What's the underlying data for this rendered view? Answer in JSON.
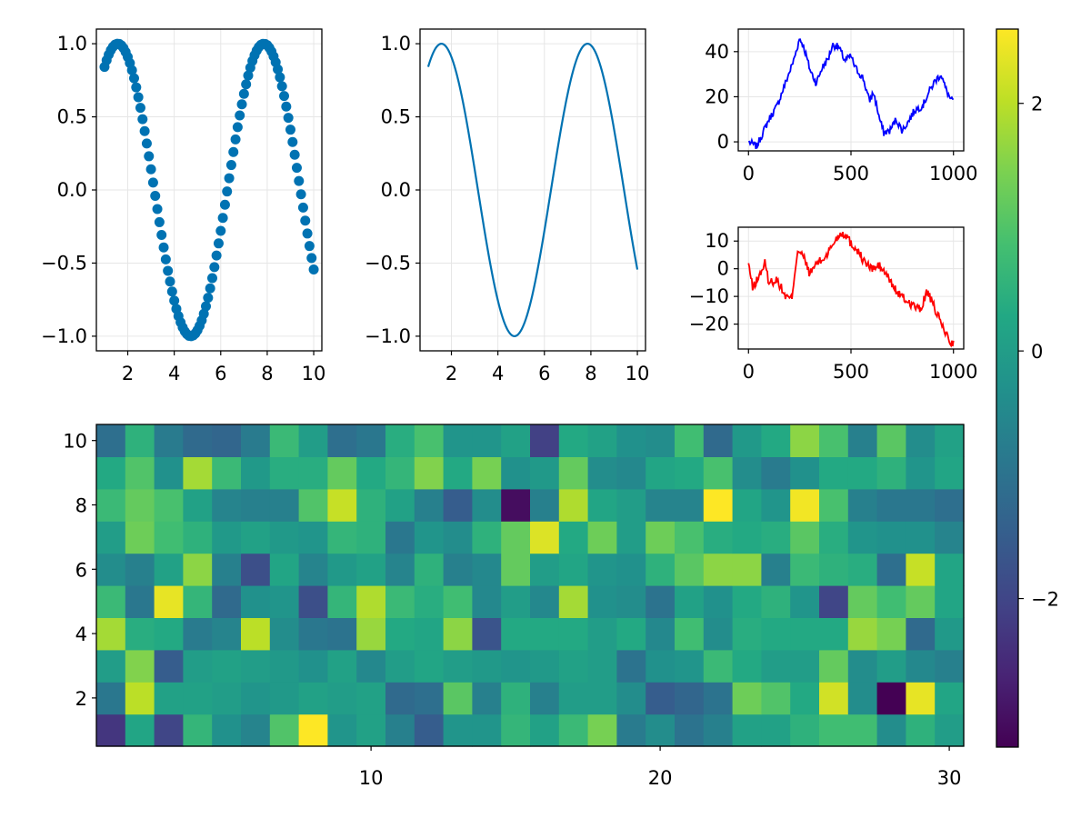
{
  "chart_data": [
    {
      "id": "scatter",
      "type": "scatter",
      "title": "",
      "function": "sin(x)",
      "x_range": [
        1,
        10
      ],
      "n_points": 100,
      "xticks": [
        "2",
        "4",
        "6",
        "8",
        "10"
      ],
      "yticks": [
        "1.0",
        "0.5",
        "0.0",
        "−0.5",
        "−1.0"
      ],
      "xlim": [
        0.65,
        10.35
      ],
      "ylim": [
        -1.1,
        1.1
      ],
      "grid": true,
      "color": "#0072b2"
    },
    {
      "id": "line",
      "type": "line",
      "title": "",
      "function": "sin(x)",
      "x_range": [
        1,
        10
      ],
      "n_points": 200,
      "xticks": [
        "2",
        "4",
        "6",
        "8",
        "10"
      ],
      "yticks": [
        "1.0",
        "0.5",
        "0.0",
        "−0.5",
        "−1.0"
      ],
      "xlim": [
        0.65,
        10.35
      ],
      "ylim": [
        -1.1,
        1.1
      ],
      "grid": true,
      "color": "#0072b2"
    },
    {
      "id": "walk-blue",
      "type": "line",
      "title": "",
      "description_values": "random walk, 1000 steps",
      "keypoints": [
        [
          0,
          0
        ],
        [
          40,
          -2
        ],
        [
          70,
          4
        ],
        [
          100,
          10
        ],
        [
          140,
          16
        ],
        [
          180,
          26
        ],
        [
          220,
          36
        ],
        [
          250,
          46
        ],
        [
          270,
          42
        ],
        [
          300,
          32
        ],
        [
          330,
          26
        ],
        [
          360,
          33
        ],
        [
          390,
          37
        ],
        [
          410,
          43
        ],
        [
          440,
          42
        ],
        [
          470,
          36
        ],
        [
          500,
          38
        ],
        [
          520,
          33
        ],
        [
          560,
          28
        ],
        [
          590,
          18
        ],
        [
          610,
          22
        ],
        [
          640,
          10
        ],
        [
          660,
          4
        ],
        [
          690,
          5
        ],
        [
          720,
          10
        ],
        [
          750,
          5
        ],
        [
          780,
          9
        ],
        [
          810,
          14
        ],
        [
          850,
          16
        ],
        [
          880,
          22
        ],
        [
          910,
          27
        ],
        [
          940,
          30
        ],
        [
          960,
          24
        ],
        [
          990,
          18
        ],
        [
          1000,
          19
        ]
      ],
      "xticks": [
        "0",
        "500",
        "1000"
      ],
      "yticks": [
        "40",
        "20",
        "0"
      ],
      "xlim": [
        -50,
        1050
      ],
      "ylim": [
        -4,
        50
      ],
      "grid": true,
      "color": "#0000ff"
    },
    {
      "id": "walk-red",
      "type": "line",
      "title": "",
      "description_values": "random walk, 1000 steps",
      "keypoints": [
        [
          0,
          2
        ],
        [
          20,
          -7
        ],
        [
          50,
          -3
        ],
        [
          80,
          2
        ],
        [
          100,
          -5
        ],
        [
          140,
          -4
        ],
        [
          180,
          -10
        ],
        [
          210,
          -11
        ],
        [
          240,
          7
        ],
        [
          270,
          4
        ],
        [
          300,
          -2
        ],
        [
          330,
          2
        ],
        [
          360,
          3
        ],
        [
          390,
          6
        ],
        [
          420,
          10
        ],
        [
          450,
          13
        ],
        [
          480,
          12
        ],
        [
          500,
          9
        ],
        [
          530,
          7
        ],
        [
          560,
          3
        ],
        [
          600,
          0
        ],
        [
          640,
          1
        ],
        [
          680,
          -3
        ],
        [
          720,
          -8
        ],
        [
          760,
          -11
        ],
        [
          800,
          -13
        ],
        [
          840,
          -15
        ],
        [
          870,
          -8
        ],
        [
          900,
          -13
        ],
        [
          930,
          -18
        ],
        [
          960,
          -23
        ],
        [
          990,
          -27
        ],
        [
          1000,
          -26
        ]
      ],
      "xticks": [
        "0",
        "500",
        "1000"
      ],
      "yticks": [
        "10",
        "0",
        "−10",
        "−20"
      ],
      "xlim": [
        -50,
        1050
      ],
      "ylim": [
        -29,
        15
      ],
      "grid": true,
      "color": "#ff0000"
    },
    {
      "id": "heatmap",
      "type": "heatmap",
      "title": "",
      "nx": 30,
      "ny": 10,
      "description_values": "random normal values, rows listed bottom (y=1) to top (y=10)",
      "values": [
        [
          -2.3,
          0.2,
          -2.0,
          0.6,
          -0.3,
          -0.6,
          1.0,
          2.6,
          -0.2,
          0.1,
          -0.7,
          -1.5,
          -0.2,
          -0.2,
          0.6,
          0.1,
          0.7,
          1.4,
          -0.8,
          -0.4,
          -1.0,
          -0.7,
          0.1,
          0.1,
          0.5,
          0.8,
          0.8,
          -0.4,
          0.5,
          0.0
        ],
        [
          -0.9,
          2.0,
          0.1,
          0.1,
          0.0,
          -0.2,
          -0.1,
          0.1,
          0.0,
          0.1,
          -1.2,
          -1.1,
          1.1,
          -0.7,
          0.5,
          -0.7,
          0.0,
          0.0,
          -0.4,
          -1.5,
          -1.3,
          -1.0,
          1.3,
          1.0,
          0.3,
          2.2,
          -0.4,
          -3.2,
          2.4,
          0.2
        ],
        [
          0.0,
          1.5,
          -1.5,
          0.0,
          0.1,
          0.0,
          -0.1,
          -0.3,
          0.1,
          -0.5,
          0.0,
          0.2,
          0.0,
          -0.1,
          -0.2,
          -0.1,
          0.1,
          0.0,
          -1.0,
          -0.3,
          -0.2,
          0.7,
          0.3,
          0.0,
          0.0,
          1.2,
          -0.4,
          0.0,
          -0.5,
          -0.7
        ],
        [
          1.8,
          0.4,
          0.3,
          -0.8,
          -0.6,
          2.0,
          -0.4,
          -0.9,
          -1.0,
          1.7,
          0.3,
          0.2,
          1.6,
          -1.7,
          0.3,
          0.3,
          0.3,
          0.0,
          0.3,
          -0.5,
          0.8,
          -0.4,
          0.4,
          0.3,
          0.3,
          0.3,
          1.7,
          1.4,
          -1.2,
          -0.1
        ],
        [
          0.7,
          -0.9,
          2.4,
          0.6,
          -1.2,
          -0.3,
          -0.2,
          -1.8,
          0.6,
          1.9,
          0.7,
          0.4,
          0.8,
          -0.5,
          0.0,
          -0.5,
          1.8,
          -0.3,
          -0.4,
          -1.0,
          0.1,
          -0.3,
          0.3,
          0.5,
          -0.2,
          -2.0,
          1.2,
          0.8,
          1.2,
          0.2
        ],
        [
          -0.4,
          -0.7,
          0.1,
          1.6,
          -0.7,
          -1.8,
          0.2,
          -0.6,
          -0.1,
          0.1,
          -0.6,
          0.5,
          -0.7,
          -0.5,
          1.2,
          0.0,
          0.2,
          -0.2,
          -0.3,
          0.5,
          1.1,
          1.6,
          1.6,
          -0.7,
          0.7,
          0.5,
          0.4,
          -1.1,
          2.1,
          0.2
        ],
        [
          0.0,
          1.3,
          0.8,
          0.5,
          -0.1,
          0.1,
          -0.1,
          -0.2,
          0.6,
          0.5,
          -0.9,
          -0.2,
          -0.4,
          0.5,
          1.2,
          2.3,
          0.3,
          1.3,
          0.0,
          1.3,
          0.9,
          0.4,
          0.3,
          0.4,
          1.1,
          0.4,
          -0.2,
          -0.3,
          -0.3,
          -0.6
        ],
        [
          0.7,
          1.2,
          0.9,
          0.1,
          -0.6,
          -0.7,
          -0.7,
          1.0,
          2.1,
          0.5,
          0.1,
          -0.7,
          -1.5,
          -0.4,
          -3.0,
          -0.7,
          1.9,
          0.2,
          0.0,
          -0.6,
          -0.6,
          2.6,
          0.2,
          -0.2,
          2.5,
          0.9,
          -0.7,
          -0.9,
          -0.9,
          -1.1
        ],
        [
          0.3,
          1.0,
          -0.3,
          1.8,
          0.7,
          -0.1,
          0.4,
          0.4,
          1.2,
          0.3,
          0.6,
          1.5,
          0.3,
          1.4,
          -0.3,
          -0.1,
          1.2,
          -0.4,
          -0.5,
          0.2,
          0.3,
          0.9,
          -0.4,
          -0.8,
          -0.3,
          0.3,
          0.3,
          0.5,
          -0.2,
          0.2
        ],
        [
          -1.1,
          0.5,
          -0.8,
          -1.2,
          -1.3,
          -0.8,
          0.7,
          0.0,
          -1.1,
          -0.9,
          0.4,
          0.9,
          -0.2,
          -0.2,
          0.1,
          -2.1,
          0.3,
          0.1,
          -0.3,
          -0.4,
          0.8,
          -1.2,
          -0.1,
          0.3,
          1.6,
          0.9,
          -0.7,
          1.1,
          -0.4,
          0.1
        ]
      ],
      "xticks": [
        10,
        20,
        30
      ],
      "yticks": [
        2,
        4,
        6,
        8,
        10
      ],
      "xlim": [
        0.5,
        30.5
      ],
      "ylim": [
        0.5,
        10.5
      ],
      "colormap": "viridis"
    },
    {
      "id": "colorbar",
      "type": "colorbar",
      "colormap": "viridis",
      "range": [
        -3.2,
        2.6
      ],
      "ticks": [
        -2,
        0,
        2
      ],
      "tick_labels": [
        "−2",
        "0",
        "2"
      ]
    }
  ]
}
